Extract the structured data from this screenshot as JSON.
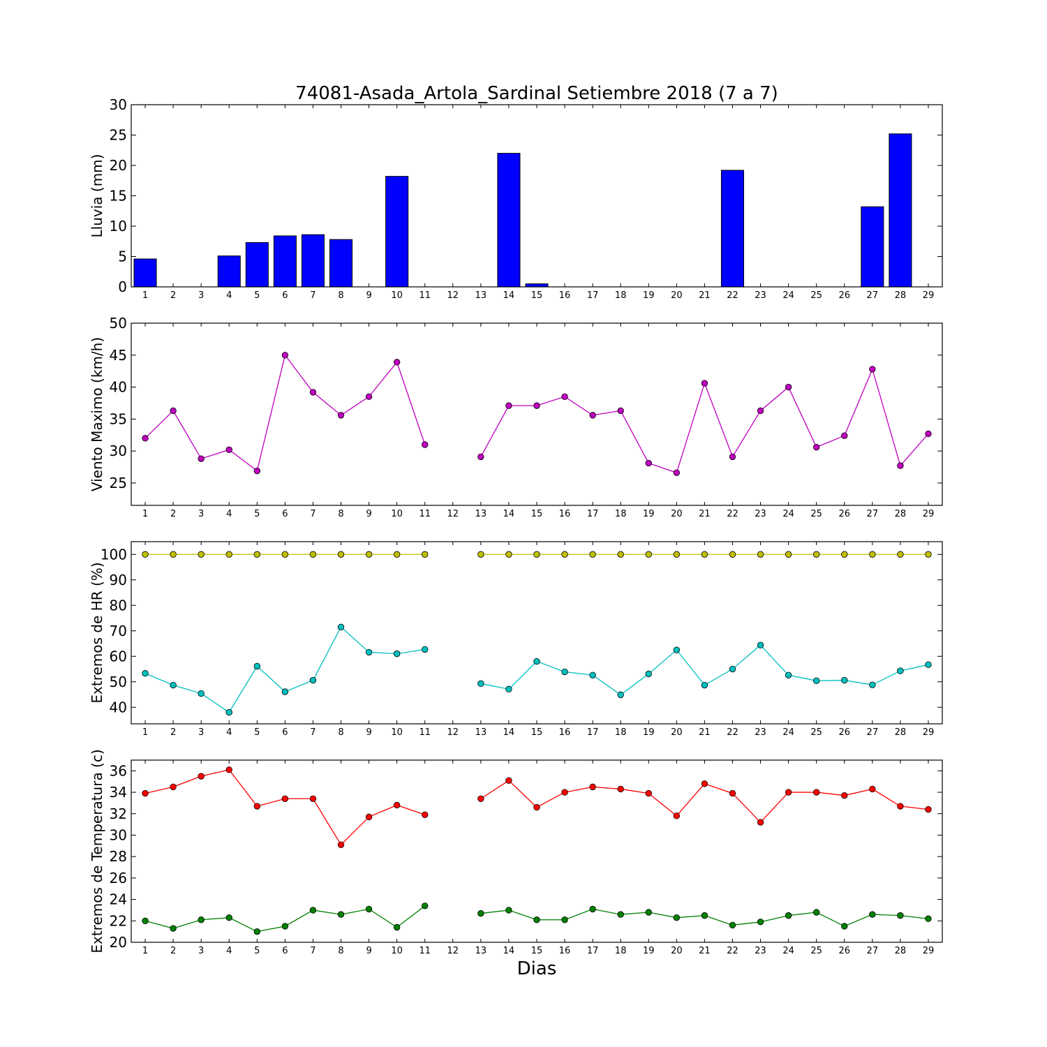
{
  "title": "74081-Asada_Artola_Sardinal Setiembre 2018  (7 a 7)",
  "xlabel": "Dias",
  "chart_data": [
    {
      "type": "bar",
      "ylabel": "Lluvia (mm)",
      "ylim": [
        0,
        30
      ],
      "yticks": [
        0,
        5,
        10,
        15,
        20,
        25,
        30
      ],
      "categories": [
        1,
        2,
        3,
        4,
        5,
        6,
        7,
        8,
        9,
        10,
        11,
        12,
        13,
        14,
        15,
        16,
        17,
        18,
        19,
        20,
        21,
        22,
        23,
        24,
        25,
        26,
        27,
        28,
        29
      ],
      "series": [
        {
          "color": "#0000ff",
          "values": [
            4.6,
            0,
            0,
            5.1,
            7.3,
            8.4,
            8.6,
            7.8,
            0,
            18.2,
            0,
            0,
            0,
            22.0,
            0.5,
            0,
            0,
            0,
            0,
            0,
            0,
            19.2,
            0,
            0,
            0,
            0,
            13.2,
            25.2,
            0
          ]
        }
      ],
      "grid": false
    },
    {
      "type": "line",
      "ylabel": "Viento Maximo (km/h)",
      "ylim": [
        21.5,
        50
      ],
      "yticks": [
        25,
        30,
        35,
        40,
        45,
        50
      ],
      "x": [
        1,
        2,
        3,
        4,
        5,
        6,
        7,
        8,
        9,
        10,
        11,
        12,
        13,
        14,
        15,
        16,
        17,
        18,
        19,
        20,
        21,
        22,
        23,
        24,
        25,
        26,
        27,
        28,
        29
      ],
      "series": [
        {
          "color": "#bf00bf",
          "values": [
            32.0,
            36.3,
            28.8,
            30.2,
            26.9,
            45.0,
            39.2,
            35.6,
            38.5,
            43.9,
            31.0,
            null,
            29.1,
            37.1,
            37.1,
            38.5,
            35.6,
            36.3,
            28.1,
            26.6,
            40.6,
            29.1,
            36.3,
            40.0,
            30.6,
            32.4,
            42.8,
            27.7,
            32.7
          ]
        }
      ],
      "grid": false
    },
    {
      "type": "line",
      "ylabel": "Extremos de HR (%)",
      "ylim": [
        33.5,
        105
      ],
      "yticks": [
        40,
        50,
        60,
        70,
        80,
        90,
        100
      ],
      "x": [
        1,
        2,
        3,
        4,
        5,
        6,
        7,
        8,
        9,
        10,
        11,
        12,
        13,
        14,
        15,
        16,
        17,
        18,
        19,
        20,
        21,
        22,
        23,
        24,
        25,
        26,
        27,
        28,
        29
      ],
      "series": [
        {
          "color": "#bfbf00",
          "values": [
            100,
            100,
            100,
            100,
            100,
            100,
            100,
            100,
            100,
            100,
            100,
            null,
            100,
            100,
            100,
            100,
            100,
            100,
            100,
            100,
            100,
            100,
            100,
            100,
            100,
            100,
            100,
            100,
            100
          ]
        },
        {
          "color": "#00bfbf",
          "values": [
            53.3,
            48.7,
            45.4,
            38.0,
            56.1,
            46.1,
            50.6,
            71.5,
            61.6,
            61.0,
            62.7,
            null,
            49.3,
            47.1,
            58.0,
            53.9,
            52.6,
            44.9,
            53.1,
            62.5,
            48.7,
            55.0,
            64.4,
            52.6,
            50.4,
            50.6,
            48.8,
            54.3,
            56.7
          ]
        }
      ],
      "grid": false
    },
    {
      "type": "line",
      "ylabel": "Extremos de Temperatura (c)",
      "ylim": [
        20,
        37
      ],
      "yticks": [
        20,
        22,
        24,
        26,
        28,
        30,
        32,
        34,
        36
      ],
      "x": [
        1,
        2,
        3,
        4,
        5,
        6,
        7,
        8,
        9,
        10,
        11,
        12,
        13,
        14,
        15,
        16,
        17,
        18,
        19,
        20,
        21,
        22,
        23,
        24,
        25,
        26,
        27,
        28,
        29
      ],
      "series": [
        {
          "color": "#ff0000",
          "values": [
            33.9,
            34.5,
            35.5,
            36.1,
            32.7,
            33.4,
            33.4,
            29.1,
            31.7,
            32.8,
            31.9,
            null,
            33.4,
            35.1,
            32.6,
            34.0,
            34.5,
            34.3,
            33.9,
            31.8,
            34.8,
            33.9,
            31.2,
            34.0,
            34.0,
            33.7,
            34.3,
            32.7,
            32.4
          ]
        },
        {
          "color": "#008000",
          "values": [
            22.0,
            21.3,
            22.1,
            22.3,
            21.0,
            21.5,
            23.0,
            22.6,
            23.1,
            21.4,
            23.4,
            null,
            22.7,
            23.0,
            22.1,
            22.1,
            23.1,
            22.6,
            22.8,
            22.3,
            22.5,
            21.6,
            21.9,
            22.5,
            22.8,
            21.5,
            22.6,
            22.5,
            22.2
          ]
        }
      ],
      "grid": false
    }
  ]
}
